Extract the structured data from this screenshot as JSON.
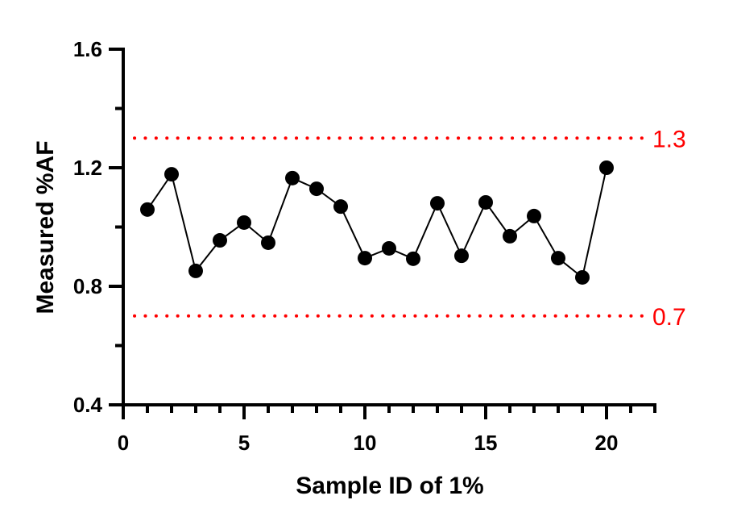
{
  "chart_data": {
    "type": "line",
    "title": "",
    "xlabel": "Sample ID of 1%",
    "ylabel": "Measured %AF",
    "xlim": [
      0,
      22
    ],
    "ylim": [
      0.4,
      1.6
    ],
    "x_ticks": [
      "0",
      "5",
      "10",
      "15",
      "20"
    ],
    "y_ticks": [
      "0.4",
      "0.8",
      "1.2",
      "1.6"
    ],
    "grid": false,
    "series": [
      {
        "x": [
          1,
          2,
          3,
          4,
          5,
          6,
          7,
          8,
          9,
          10,
          11,
          12,
          13,
          14,
          15,
          16,
          17,
          18,
          19,
          20
        ],
        "y": [
          1.059,
          1.178,
          0.852,
          0.955,
          1.015,
          0.947,
          1.165,
          1.129,
          1.069,
          0.895,
          0.928,
          0.893,
          1.08,
          0.903,
          1.083,
          0.969,
          1.037,
          0.895,
          0.83,
          1.2
        ],
        "color": "#000000",
        "marker": "circle"
      }
    ],
    "reference_lines": [
      {
        "y": 1.3,
        "label": "1.3",
        "color": "#ff0000",
        "style": "dotted"
      },
      {
        "y": 0.7,
        "label": "0.7",
        "color": "#ff0000",
        "style": "dotted"
      }
    ]
  }
}
